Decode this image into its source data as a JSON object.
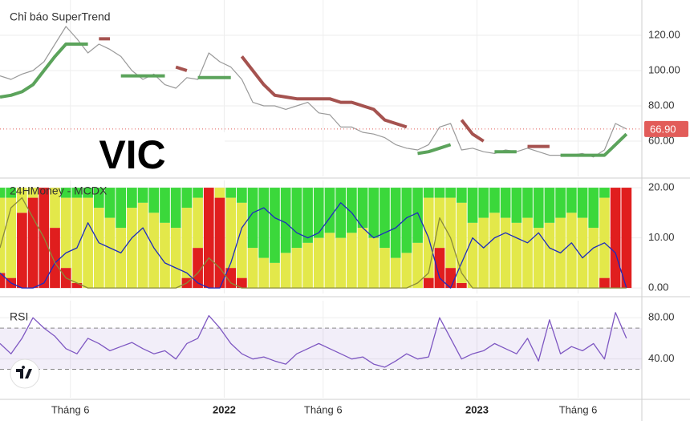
{
  "chart_data": [
    {
      "type": "supertrend",
      "title": "Chỉ báo SuperTrend",
      "symbol": "VIC",
      "x": [
        0,
        0.5,
        1,
        1.5,
        2,
        2.5,
        3,
        3.5,
        4,
        4.5,
        5,
        5.5,
        6,
        6.5,
        7,
        7.5,
        8,
        8.5,
        9,
        9.5,
        10,
        10.5,
        11,
        11.5,
        12,
        12.5,
        13,
        13.5,
        14,
        14.5,
        15,
        15.5,
        16,
        16.5,
        17,
        17.5,
        18,
        18.5,
        19,
        19.5,
        20,
        20.5,
        21,
        21.5,
        22,
        22.5,
        23,
        23.5,
        24,
        24.5,
        25,
        25.5,
        26,
        26.5,
        27,
        27.5,
        28,
        28.5
      ],
      "xlim": [
        0,
        29.2
      ],
      "ylim": [
        40,
        140
      ],
      "yticks": [
        {
          "value": 60,
          "label": "60.00"
        },
        {
          "value": 80,
          "label": "80.00"
        },
        {
          "value": 100,
          "label": "100.00"
        },
        {
          "value": 120,
          "label": "120.00"
        }
      ],
      "last": {
        "value": 66.9,
        "label": "66.90"
      },
      "last_color": "#e25c59",
      "series": [
        {
          "color": "#9a9a9a",
          "values": [
            97,
            95,
            98,
            100,
            105,
            115,
            125,
            118,
            110,
            115,
            112,
            108,
            100,
            95,
            98,
            92,
            90,
            96,
            95,
            110,
            105,
            102,
            95,
            82,
            80,
            80,
            78,
            80,
            82,
            76,
            75,
            68,
            68,
            65,
            64,
            62,
            58,
            56,
            55,
            58,
            68,
            70,
            55,
            56,
            54,
            53,
            55,
            54,
            56,
            54,
            52,
            52,
            52,
            53,
            51,
            55,
            70,
            66.9
          ]
        },
        {
          "color": "#5ba35b",
          "values": [
            85,
            86,
            88,
            92,
            100,
            108,
            115,
            115,
            115,
            null,
            null,
            97,
            97,
            97,
            97,
            97,
            null,
            null,
            96,
            96,
            96,
            96,
            null,
            null,
            null,
            null,
            null,
            null,
            null,
            null,
            null,
            null,
            null,
            null,
            null,
            null,
            null,
            null,
            53,
            54,
            56,
            58,
            null,
            null,
            null,
            54,
            54,
            54,
            null,
            null,
            null,
            52,
            52,
            52,
            52,
            52,
            58,
            64
          ]
        },
        {
          "color": "#a5524f",
          "values": [
            null,
            null,
            null,
            null,
            null,
            null,
            null,
            null,
            null,
            118,
            118,
            null,
            null,
            null,
            null,
            null,
            102,
            100,
            null,
            null,
            null,
            null,
            108,
            100,
            92,
            86,
            85,
            84,
            84,
            84,
            84,
            82,
            82,
            80,
            78,
            72,
            70,
            68,
            null,
            null,
            null,
            null,
            72,
            64,
            60,
            null,
            null,
            null,
            57,
            57,
            57,
            null,
            null,
            null,
            null,
            null,
            null,
            null
          ]
        }
      ]
    },
    {
      "type": "mcdx",
      "title": "24HMoney - MCDX",
      "ylim": [
        -1.1,
        21.45
      ],
      "yticks": [
        {
          "value": 0,
          "label": "0.00"
        },
        {
          "value": 10,
          "label": "10.00"
        },
        {
          "value": 20,
          "label": "20.00"
        }
      ],
      "bars": [
        {
          "color": "#e01e1e",
          "values": [
            3,
            2,
            15,
            18,
            20,
            12,
            4,
            1,
            0,
            0,
            0,
            0,
            0,
            0,
            0,
            0,
            0,
            2,
            8,
            20,
            18,
            4,
            2,
            0,
            0,
            0,
            0,
            0,
            0,
            0,
            0,
            0,
            0,
            0,
            0,
            0,
            0,
            0,
            0,
            2,
            8,
            4,
            1,
            0,
            0,
            0,
            0,
            0,
            0,
            0,
            0,
            0,
            0,
            0,
            0,
            2,
            20,
            20
          ]
        },
        {
          "color": "#e3e84a",
          "values": [
            15,
            16,
            5,
            2,
            0,
            8,
            14,
            17,
            18,
            16,
            14,
            12,
            16,
            17,
            15,
            13,
            12,
            14,
            10,
            0,
            2,
            14,
            15,
            8,
            6,
            5,
            7,
            8,
            9,
            10,
            11,
            10,
            11,
            12,
            10,
            8,
            6,
            7,
            9,
            16,
            10,
            14,
            16,
            13,
            14,
            15,
            14,
            13,
            14,
            12,
            13,
            14,
            15,
            14,
            12,
            16,
            0,
            0
          ]
        },
        {
          "color": "#3bd83b",
          "values": [
            2,
            2,
            0,
            0,
            0,
            0,
            2,
            2,
            2,
            4,
            6,
            8,
            4,
            3,
            5,
            7,
            8,
            4,
            2,
            0,
            0,
            2,
            3,
            12,
            14,
            15,
            13,
            12,
            11,
            10,
            9,
            10,
            9,
            8,
            10,
            12,
            14,
            13,
            11,
            2,
            2,
            2,
            3,
            7,
            6,
            5,
            6,
            7,
            6,
            8,
            7,
            6,
            5,
            6,
            8,
            2,
            0,
            0
          ]
        }
      ],
      "series": [
        {
          "color": "#1c2bbf",
          "values": [
            3,
            1,
            0,
            0,
            1,
            5,
            7,
            8,
            13,
            9,
            8,
            7,
            10,
            12,
            8,
            5,
            4,
            3,
            1,
            0,
            0,
            5,
            12,
            15,
            16,
            14,
            13,
            11,
            10,
            11,
            14,
            17,
            15,
            12,
            10,
            11,
            12,
            14,
            15,
            10,
            2,
            0,
            5,
            10,
            8,
            10,
            11,
            10,
            9,
            11,
            8,
            7,
            9,
            6,
            8,
            9,
            7,
            0
          ]
        },
        {
          "color": "#8a8a3a",
          "values": [
            8,
            16,
            18,
            14,
            10,
            5,
            2,
            1,
            0,
            0,
            0,
            0,
            0,
            0,
            0,
            0,
            0,
            1,
            3,
            6,
            4,
            1,
            0,
            0,
            0,
            0,
            0,
            0,
            0,
            0,
            0,
            0,
            0,
            0,
            0,
            0,
            0,
            0,
            1,
            3,
            14,
            10,
            3,
            0,
            0,
            0,
            0,
            0,
            0,
            0,
            0,
            0,
            0,
            0,
            0,
            0,
            0,
            0
          ]
        }
      ]
    },
    {
      "type": "rsi",
      "title": "RSI",
      "ylim": [
        2.4,
        96.5
      ],
      "yticks": [
        {
          "value": 40,
          "label": "40.00"
        },
        {
          "value": 80,
          "label": "80.00"
        }
      ],
      "band": [
        30,
        70
      ],
      "band_color": "#7e57c2",
      "xticks": [
        {
          "value": 3.2,
          "label": "Tháng 6"
        },
        {
          "value": 10.2,
          "label": "2022"
        },
        {
          "value": 14.7,
          "label": "Tháng 6"
        },
        {
          "value": 21.7,
          "label": "2023"
        },
        {
          "value": 26.3,
          "label": "Tháng 6"
        }
      ],
      "series": [
        {
          "color": "#7e57c2",
          "values": [
            55,
            45,
            60,
            80,
            70,
            62,
            50,
            45,
            60,
            55,
            48,
            52,
            56,
            50,
            45,
            48,
            40,
            55,
            60,
            82,
            70,
            55,
            45,
            40,
            42,
            38,
            35,
            45,
            50,
            55,
            50,
            45,
            40,
            42,
            35,
            32,
            38,
            45,
            40,
            42,
            80,
            60,
            40,
            45,
            48,
            55,
            50,
            45,
            60,
            38,
            78,
            45,
            52,
            48,
            55,
            40,
            85,
            60
          ]
        }
      ]
    }
  ]
}
